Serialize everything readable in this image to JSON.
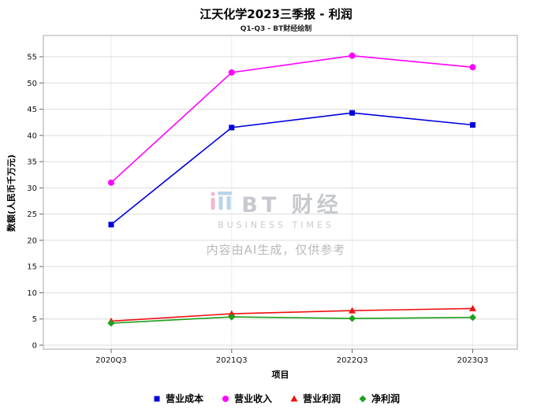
{
  "title": "江天化学2023三季报 - 利润",
  "subtitle": "Q1-Q3 - BT财经绘制",
  "watermark": {
    "logo_text": "BT 财经",
    "logo_sub": "BUSINESS TIMES",
    "disclaimer": "内容由AI生成，仅供参考"
  },
  "chart_data": {
    "type": "line",
    "categories": [
      "2020Q3",
      "2021Q3",
      "2022Q3",
      "2023Q3"
    ],
    "series": [
      {
        "name": "营业成本",
        "marker": "square",
        "color": "#0000dd",
        "values": [
          23,
          41.5,
          44.3,
          42
        ]
      },
      {
        "name": "营业收入",
        "marker": "circle",
        "color": "#ff00ff",
        "values": [
          31,
          52,
          55.2,
          53
        ]
      },
      {
        "name": "营业利润",
        "marker": "triangle",
        "color": "#ee1111",
        "values": [
          4.6,
          6.0,
          6.6,
          7.0
        ]
      },
      {
        "name": "净利润",
        "marker": "diamond",
        "color": "#1ca01c",
        "values": [
          4.2,
          5.4,
          5.1,
          5.3
        ]
      }
    ],
    "xlabel": "项目",
    "ylabel": "数额(人民币千万元)",
    "ylim": [
      0,
      55
    ],
    "yticks": [
      0,
      5,
      10,
      15,
      20,
      25,
      30,
      35,
      40,
      45,
      50,
      55
    ],
    "grid": true,
    "legend_position": "bottom"
  }
}
